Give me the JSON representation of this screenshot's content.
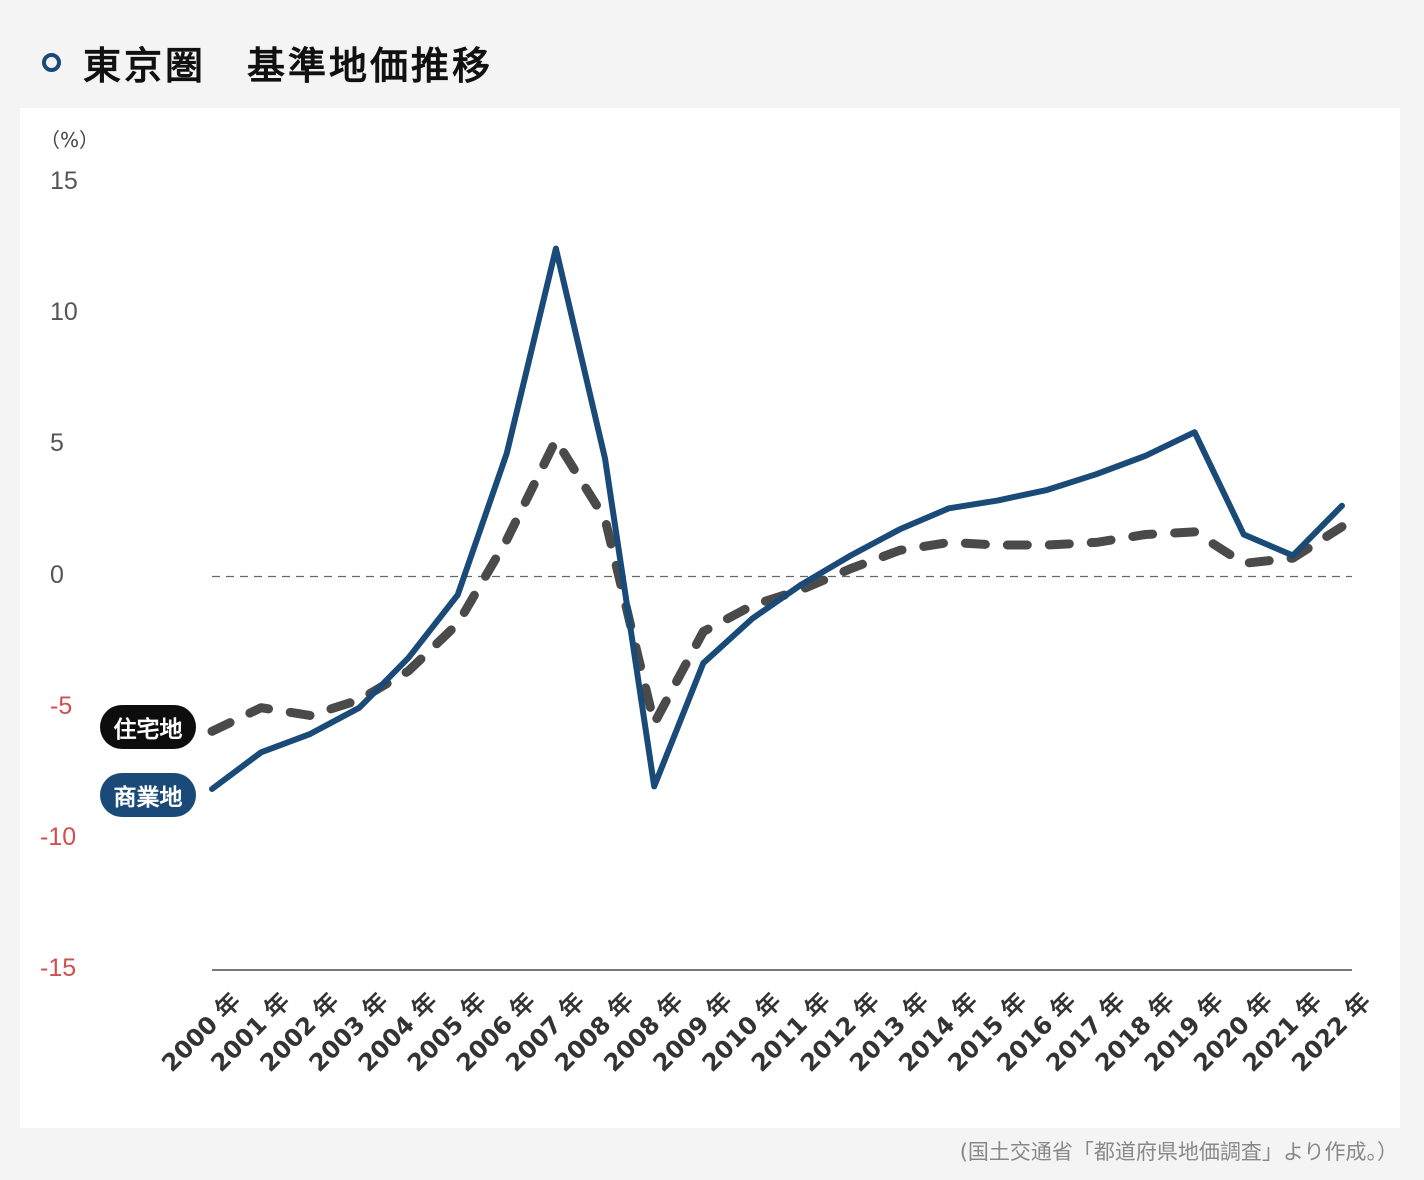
{
  "header": {
    "title": "東京圏　基準地価推移",
    "accent_color": "#1a4a78"
  },
  "chart_data": {
    "type": "line",
    "ylabel": "（%）",
    "ylim": [
      -15,
      15
    ],
    "yticks": [
      {
        "value": 15,
        "label": "15"
      },
      {
        "value": 10,
        "label": "10"
      },
      {
        "value": 5,
        "label": "5"
      },
      {
        "value": 0,
        "label": "0"
      },
      {
        "value": -5,
        "label": "-5"
      },
      {
        "value": -10,
        "label": "-10"
      },
      {
        "value": -15,
        "label": "-15"
      }
    ],
    "negative_tick_color": "#d14f4f",
    "zero_line": "dashed",
    "categories": [
      "2000 年",
      "2001 年",
      "2002 年",
      "2003 年",
      "2004 年",
      "2005 年",
      "2006 年",
      "2007 年",
      "2008 年",
      "2008 年",
      "2009 年",
      "2010 年",
      "2011 年",
      "2012 年",
      "2013 年",
      "2014 年",
      "2015 年",
      "2016 年",
      "2017 年",
      "2018 年",
      "2019 年",
      "2020 年",
      "2021 年",
      "2022 年"
    ],
    "series": [
      {
        "name": "住宅地",
        "color": "#4a4a4a",
        "style": "dashed",
        "values": [
          -5.9,
          -5.0,
          -5.3,
          -4.7,
          -3.6,
          -1.8,
          1.4,
          5.2,
          2.2,
          -5.6,
          -2.1,
          -1.1,
          -0.5,
          0.3,
          1.0,
          1.3,
          1.2,
          1.2,
          1.3,
          1.6,
          1.7,
          0.5,
          0.7,
          1.9
        ]
      },
      {
        "name": "商業地",
        "color": "#1a4a78",
        "style": "solid",
        "values": [
          -8.1,
          -6.7,
          -6.0,
          -5.0,
          -3.1,
          -0.7,
          4.7,
          12.5,
          4.5,
          -8.0,
          -3.3,
          -1.6,
          -0.3,
          0.8,
          1.8,
          2.6,
          2.9,
          3.3,
          3.9,
          4.6,
          5.5,
          1.6,
          0.8,
          2.7
        ]
      }
    ]
  },
  "legend": {
    "residential": "住宅地",
    "commercial": "商業地"
  },
  "footer": {
    "source": "(国土交通省「都道府県地価調査」より作成。）"
  }
}
